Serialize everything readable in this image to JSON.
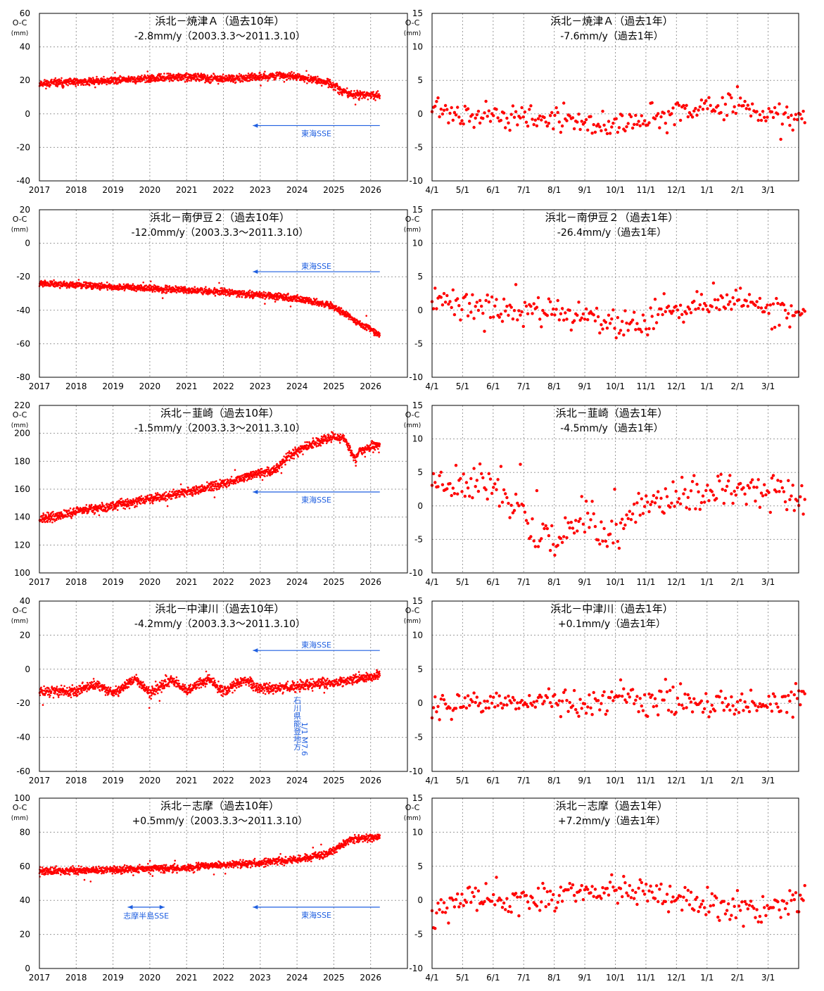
{
  "colors": {
    "data": "#ff0000",
    "annotation": "#1f5fe0",
    "grid": "#9a9a9a",
    "frame": "#000000",
    "text": "#000000"
  },
  "chart_data": [
    {
      "id": "p1-10y",
      "type": "scatter",
      "title": "浜北－焼津Ａ（過去10年）",
      "subtitle": "-2.8mm/y（2003.3.3～2011.3.10）",
      "ylabel": [
        "O-C",
        "(mm)"
      ],
      "ylim": [
        -40,
        60
      ],
      "ytick_step": 20,
      "ytick_labels": [
        "-40",
        "-20",
        "0",
        "20",
        "40",
        "60"
      ],
      "xtick_labels": [
        "2017",
        "2018",
        "2019",
        "2020",
        "2021",
        "2022",
        "2023",
        "2024",
        "2025",
        "2026"
      ],
      "series": [
        {
          "name": "daily O-C",
          "keyframes": [
            [
              0,
              18
            ],
            [
              1,
              19
            ],
            [
              2,
              20
            ],
            [
              3,
              21
            ],
            [
              4,
              22
            ],
            [
              5,
              21
            ],
            [
              6,
              22
            ],
            [
              6.5,
              23
            ],
            [
              7,
              22
            ],
            [
              7.4,
              21
            ],
            [
              7.9,
              18
            ],
            [
              8.2,
              14
            ],
            [
              8.5,
              11.5
            ],
            [
              9.25,
              11
            ]
          ],
          "noise": 1.4,
          "count": 1550,
          "seed": 11
        }
      ],
      "annotations": [
        {
          "text": "東海SSE",
          "type": "arrow",
          "x_start": 9.25,
          "x_end": 5.8,
          "y": -7
        }
      ]
    },
    {
      "id": "p1-1y",
      "type": "scatter",
      "title": "浜北－焼津Ａ（過去1年）",
      "subtitle": "-7.6mm/y（過去1年）",
      "ylabel": [
        "O-C",
        "(mm)"
      ],
      "ylim": [
        -10,
        15
      ],
      "ytick_step": 5,
      "ytick_labels": [
        "-10",
        "-5",
        "0",
        "5",
        "10",
        "15"
      ],
      "xtick_labels": [
        "4/1",
        "5/1",
        "6/1",
        "7/1",
        "8/1",
        "9/1",
        "10/1",
        "11/1",
        "12/1",
        "1/1",
        "2/1",
        "3/1"
      ],
      "series": [
        {
          "name": "daily O-C",
          "keyframes": [
            [
              0,
              2
            ],
            [
              0.3,
              0.5
            ],
            [
              4,
              -1
            ],
            [
              5.7,
              -1.7
            ],
            [
              8,
              0
            ],
            [
              10,
              1.5
            ],
            [
              10.3,
              0.2
            ],
            [
              12.2,
              -0.5
            ]
          ],
          "noise": 1.2,
          "count": 250,
          "seed": 21
        }
      ],
      "annotations": []
    },
    {
      "id": "p2-10y",
      "type": "scatter",
      "title": "浜北－南伊豆２（過去10年）",
      "subtitle": "-12.0mm/y（2003.3.3～2011.3.10）",
      "ylabel": [
        "O-C",
        "(mm)"
      ],
      "ylim": [
        -80,
        20
      ],
      "ytick_step": 20,
      "ytick_labels": [
        "-80",
        "-60",
        "-40",
        "-20",
        "0",
        "20"
      ],
      "xtick_labels": [
        "2017",
        "2018",
        "2019",
        "2020",
        "2021",
        "2022",
        "2023",
        "2024",
        "2025",
        "2026"
      ],
      "series": [
        {
          "name": "daily O-C",
          "keyframes": [
            [
              0,
              -24
            ],
            [
              2,
              -26
            ],
            [
              4,
              -28
            ],
            [
              5,
              -29
            ],
            [
              6,
              -31
            ],
            [
              7,
              -33
            ],
            [
              7.5,
              -35
            ],
            [
              8,
              -38
            ],
            [
              8.3,
              -42
            ],
            [
              8.6,
              -47
            ],
            [
              9,
              -51
            ],
            [
              9.25,
              -55
            ]
          ],
          "noise": 1.2,
          "count": 1550,
          "seed": 12
        }
      ],
      "annotations": [
        {
          "text": "東海SSE",
          "type": "arrow",
          "x_start": 9.25,
          "x_end": 5.8,
          "y": -17
        }
      ]
    },
    {
      "id": "p2-1y",
      "type": "scatter",
      "title": "浜北－南伊豆２（過去1年）",
      "subtitle": "-26.4mm/y（過去1年）",
      "ylabel": [
        "O-C",
        "(mm)"
      ],
      "ylim": [
        -10,
        15
      ],
      "ytick_step": 5,
      "ytick_labels": [
        "-10",
        "-5",
        "0",
        "5",
        "10",
        "15"
      ],
      "xtick_labels": [
        "4/1",
        "5/1",
        "6/1",
        "7/1",
        "8/1",
        "9/1",
        "10/1",
        "11/1",
        "12/1",
        "1/1",
        "2/1",
        "3/1"
      ],
      "series": [
        {
          "name": "daily O-C",
          "keyframes": [
            [
              0,
              1.5
            ],
            [
              3.5,
              0
            ],
            [
              5,
              -1
            ],
            [
              6.4,
              -2.5
            ],
            [
              8,
              0
            ],
            [
              9.7,
              2
            ],
            [
              10.5,
              1.5
            ],
            [
              11,
              0
            ],
            [
              12.2,
              -0.5
            ]
          ],
          "noise": 1.4,
          "count": 250,
          "seed": 22
        }
      ],
      "annotations": []
    },
    {
      "id": "p3-10y",
      "type": "scatter",
      "title": "浜北－韮崎（過去10年）",
      "subtitle": "-1.5mm/y（2003.3.3～2011.3.10）",
      "ylabel": [
        "O-C",
        "(mm)"
      ],
      "ylim": [
        100,
        220
      ],
      "ytick_step": 20,
      "ytick_labels": [
        "100",
        "120",
        "140",
        "160",
        "180",
        "200",
        "220"
      ],
      "xtick_labels": [
        "2017",
        "2018",
        "2019",
        "2020",
        "2021",
        "2022",
        "2023",
        "2024",
        "2025",
        "2026"
      ],
      "series": [
        {
          "name": "daily O-C",
          "keyframes": [
            [
              0,
              138
            ],
            [
              1,
              144
            ],
            [
              2,
              148
            ],
            [
              3,
              153
            ],
            [
              4,
              158
            ],
            [
              5,
              164
            ],
            [
              6,
              172
            ],
            [
              6.4,
              173
            ],
            [
              6.7,
              182
            ],
            [
              7.2,
              190
            ],
            [
              7.7,
              195
            ],
            [
              8,
              198
            ],
            [
              8.3,
              196
            ],
            [
              8.6,
              180
            ],
            [
              8.7,
              188
            ],
            [
              9.25,
              192
            ]
          ],
          "noise": 2.0,
          "count": 1550,
          "seed": 13
        }
      ],
      "annotations": [
        {
          "text": "東海SSE",
          "type": "arrow",
          "x_start": 9.25,
          "x_end": 5.8,
          "y": 158
        }
      ]
    },
    {
      "id": "p3-1y",
      "type": "scatter",
      "title": "浜北－韮崎（過去1年）",
      "subtitle": "-4.5mm/y（過去1年）",
      "ylabel": [
        "O-C",
        "(mm)"
      ],
      "ylim": [
        -10,
        15
      ],
      "ytick_step": 5,
      "ytick_labels": [
        "-10",
        "-5",
        "0",
        "5",
        "10",
        "15"
      ],
      "xtick_labels": [
        "4/1",
        "5/1",
        "6/1",
        "7/1",
        "8/1",
        "9/1",
        "10/1",
        "11/1",
        "12/1",
        "1/1",
        "2/1",
        "3/1"
      ],
      "series": [
        {
          "name": "daily O-C",
          "keyframes": [
            [
              0,
              4
            ],
            [
              2,
              3
            ],
            [
              2.8,
              1
            ],
            [
              3.3,
              -4
            ],
            [
              4,
              -5
            ],
            [
              4.7,
              -3
            ],
            [
              5,
              0
            ],
            [
              5.8,
              -6
            ],
            [
              6.2,
              -2
            ],
            [
              7,
              0
            ],
            [
              8,
              1
            ],
            [
              9.5,
              3
            ],
            [
              10.5,
              2
            ],
            [
              12.2,
              1.5
            ]
          ],
          "noise": 1.8,
          "count": 250,
          "seed": 23
        }
      ],
      "annotations": []
    },
    {
      "id": "p4-10y",
      "type": "scatter",
      "title": "浜北－中津川（過去10年）",
      "subtitle": "-4.2mm/y（2003.3.3～2011.3.10）",
      "ylabel": [
        "O-C",
        "(mm)"
      ],
      "ylim": [
        -60,
        40
      ],
      "ytick_step": 20,
      "ytick_labels": [
        "-60",
        "-40",
        "-20",
        "0",
        "20",
        "40"
      ],
      "xtick_labels": [
        "2017",
        "2018",
        "2019",
        "2020",
        "2021",
        "2022",
        "2023",
        "2024",
        "2025",
        "2026"
      ],
      "series": [
        {
          "name": "daily O-C",
          "keyframes": [
            [
              0,
              -13
            ],
            [
              1,
              -13
            ],
            [
              1.5,
              -9
            ],
            [
              2,
              -14
            ],
            [
              2.6,
              -6
            ],
            [
              3,
              -14
            ],
            [
              3.6,
              -6
            ],
            [
              4,
              -13
            ],
            [
              4.6,
              -6
            ],
            [
              5,
              -13
            ],
            [
              5.6,
              -6
            ],
            [
              6,
              -12
            ],
            [
              7,
              -10
            ],
            [
              8,
              -8
            ],
            [
              9.25,
              -4
            ]
          ],
          "noise": 1.8,
          "count": 1550,
          "seed": 14
        }
      ],
      "annotations": [
        {
          "text": "東海SSE",
          "type": "arrow",
          "x_start": 9.25,
          "x_end": 5.8,
          "y": 11
        },
        {
          "text": "石川県能登地方",
          "type": "vertical-label",
          "x": 7.0,
          "y_top": -16
        },
        {
          "text": "1/1 M7.6",
          "type": "vertical-label",
          "x": 7.2,
          "y_top": -31
        }
      ]
    },
    {
      "id": "p4-1y",
      "type": "scatter",
      "title": "浜北－中津川（過去1年）",
      "subtitle": "+0.1mm/y（過去1年）",
      "ylabel": [
        "O-C",
        "(mm)"
      ],
      "ylim": [
        -10,
        15
      ],
      "ytick_step": 5,
      "ytick_labels": [
        "-10",
        "-5",
        "0",
        "5",
        "10",
        "15"
      ],
      "xtick_labels": [
        "4/1",
        "5/1",
        "6/1",
        "7/1",
        "8/1",
        "9/1",
        "10/1",
        "11/1",
        "12/1",
        "1/1",
        "2/1",
        "3/1"
      ],
      "series": [
        {
          "name": "daily O-C",
          "keyframes": [
            [
              0,
              -1
            ],
            [
              1,
              0.5
            ],
            [
              3,
              0
            ],
            [
              5,
              0.5
            ],
            [
              7,
              0.3
            ],
            [
              9,
              0
            ],
            [
              11,
              -0.5
            ],
            [
              12.2,
              0.5
            ]
          ],
          "noise": 1.3,
          "count": 250,
          "seed": 24
        }
      ],
      "annotations": []
    },
    {
      "id": "p5-10y",
      "type": "scatter",
      "title": "浜北－志摩（過去10年）",
      "subtitle": "+0.5mm/y（2003.3.3～2011.3.10）",
      "ylabel": [
        "O-C",
        "(mm)"
      ],
      "ylim": [
        0,
        100
      ],
      "ytick_step": 20,
      "ytick_labels": [
        "0",
        "20",
        "40",
        "60",
        "80",
        "100"
      ],
      "xtick_labels": [
        "2017",
        "2018",
        "2019",
        "2020",
        "2021",
        "2022",
        "2023",
        "2024",
        "2025",
        "2026"
      ],
      "series": [
        {
          "name": "daily O-C",
          "keyframes": [
            [
              0,
              57
            ],
            [
              2,
              58
            ],
            [
              4,
              59
            ],
            [
              5,
              61
            ],
            [
              6,
              62
            ],
            [
              7,
              64
            ],
            [
              7.8,
              67
            ],
            [
              8.1,
              71
            ],
            [
              8.5,
              76
            ],
            [
              9.25,
              77
            ]
          ],
          "noise": 1.3,
          "count": 1550,
          "seed": 15
        }
      ],
      "annotations": [
        {
          "text": "志摩半島SSE",
          "type": "double-arrow",
          "x_start": 2.4,
          "x_end": 3.4,
          "y": 36
        },
        {
          "text": "東海SSE",
          "type": "arrow",
          "x_start": 9.25,
          "x_end": 5.8,
          "y": 36
        }
      ]
    },
    {
      "id": "p5-1y",
      "type": "scatter",
      "title": "浜北－志摩（過去1年）",
      "subtitle": "+7.2mm/y（過去1年）",
      "ylabel": [
        "O-C",
        "(mm)"
      ],
      "ylim": [
        -10,
        15
      ],
      "ytick_step": 5,
      "ytick_labels": [
        "-10",
        "-5",
        "0",
        "5",
        "10",
        "15"
      ],
      "xtick_labels": [
        "4/1",
        "5/1",
        "6/1",
        "7/1",
        "8/1",
        "9/1",
        "10/1",
        "11/1",
        "12/1",
        "1/1",
        "2/1",
        "3/1"
      ],
      "series": [
        {
          "name": "daily O-C",
          "keyframes": [
            [
              0,
              -2
            ],
            [
              1,
              0
            ],
            [
              3,
              0
            ],
            [
              4.5,
              1
            ],
            [
              6,
              1.2
            ],
            [
              7,
              1
            ],
            [
              8,
              0.5
            ],
            [
              9,
              -0.5
            ],
            [
              10.5,
              -1.5
            ],
            [
              12.2,
              0.5
            ]
          ],
          "noise": 1.3,
          "count": 250,
          "seed": 25
        }
      ],
      "annotations": []
    }
  ]
}
